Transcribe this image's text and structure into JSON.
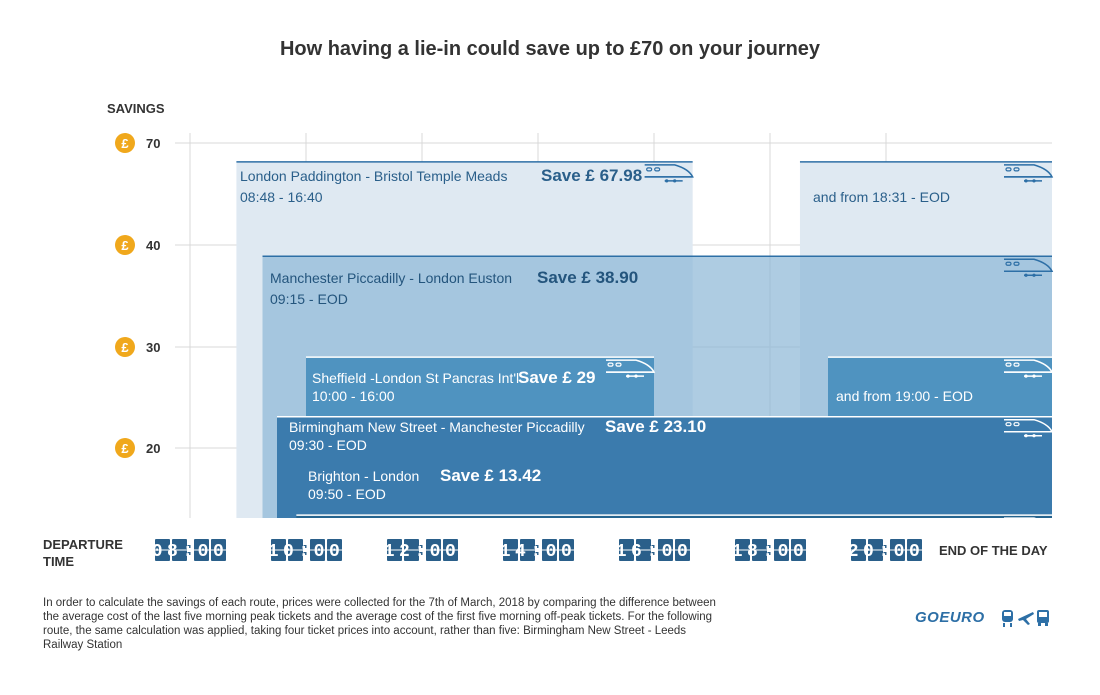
{
  "title": "How having a lie-in could save up to £70 on your journey",
  "y_axis_label": "SAVINGS",
  "x_axis_label_line1": "DEPARTURE",
  "x_axis_label_line2": "TIME",
  "end_of_day_label": "END OF THE DAY",
  "currency_symbol": "£",
  "footnote": "In order to calculate the savings of each route, prices were collected for the 7th of March, 2018 by comparing the difference between the average cost of the last five morning peak tickets and the average cost of the first five morning off-peak tickets. For the following route, the same calculation was applied, taking four ticket prices into account, rather than five: Birmingham New Street - Leeds Railway Station",
  "brand": "GOEURO",
  "brand_icons": [
    "train-icon",
    "plane-icon",
    "bus-icon"
  ],
  "colors": {
    "accent": "#2d6fa6",
    "coin": "#f0a81c",
    "route_1": "#dfe9f2",
    "route_2": "#8fb8d7",
    "route_3": "#4f93c0",
    "route_4": "#3b7bad",
    "route_5": "#25648f"
  },
  "chart_data": {
    "type": "range-bar",
    "x_ticks": [
      "08:00",
      "10:00",
      "12:00",
      "14:00",
      "16:00",
      "18:00",
      "20:00"
    ],
    "x_end_label": "END OF THE DAY",
    "y_ticks": [
      70,
      40,
      30,
      20
    ],
    "routes": [
      {
        "name": "London Paddington - Bristol Temple Meads",
        "save_label": "Save £ 67.98",
        "savings": 67.98,
        "window_text": "08:48 - 16:40",
        "start": "08:48",
        "end": "16:40",
        "second_window_text": "and from 18:31 - EOD",
        "second_start": "18:31",
        "second_end": "EOD"
      },
      {
        "name": "Manchester Piccadilly - London Euston",
        "save_label": "Save £ 38.90",
        "savings": 38.9,
        "window_text": "09:15 - EOD",
        "start": "09:15",
        "end": "EOD"
      },
      {
        "name": "Sheffield -London St Pancras Int'l",
        "save_label": "Save £ 29",
        "savings": 29,
        "window_text": "10:00 - 16:00",
        "start": "10:00",
        "end": "16:00",
        "second_window_text": "and from 19:00 - EOD",
        "second_start": "19:00",
        "second_end": "EOD"
      },
      {
        "name": "Birmingham New Street -  Manchester Piccadilly",
        "save_label": "Save £ 23.10",
        "savings": 23.1,
        "window_text": "09:30 - EOD",
        "start": "09:30",
        "end": "EOD"
      },
      {
        "name": "Brighton - London",
        "save_label": "Save £ 13.42",
        "savings": 13.42,
        "window_text": "09:50 - EOD",
        "start": "09:50",
        "end": "EOD"
      }
    ]
  }
}
